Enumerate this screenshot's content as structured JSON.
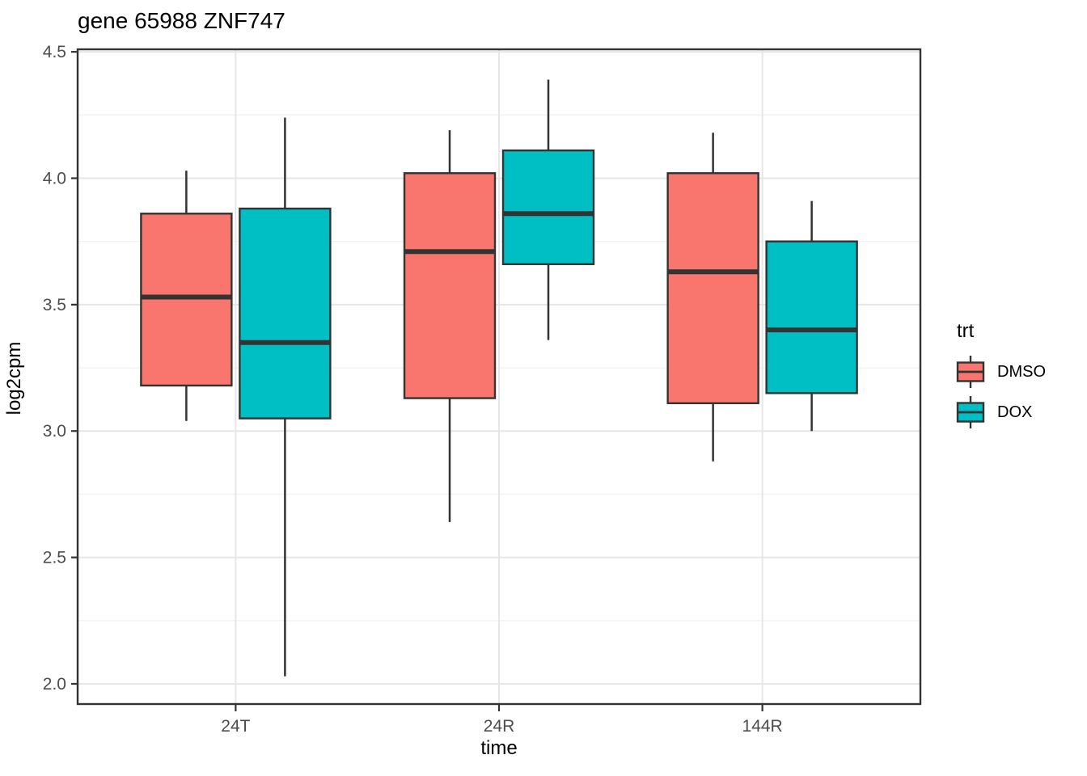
{
  "title": "gene 65988 ZNF747",
  "legend": {
    "title": "trt",
    "entries": [
      {
        "label": "DMSO",
        "color": "#F8766D"
      },
      {
        "label": "DOX",
        "color": "#00BFC4"
      }
    ]
  },
  "colors": {
    "box_stroke": "#333333",
    "median": "#333333",
    "panel_border": "#333333",
    "grid_major": "#E6E6E6",
    "grid_minor": "#F2F2F2",
    "tick_text": "#4D4D4D",
    "tick_mark": "#333333",
    "background": "#FFFFFF"
  },
  "chart_data": {
    "type": "boxplot",
    "title": "gene 65988 ZNF747",
    "xlabel": "time",
    "ylabel": "log2cpm",
    "categories": [
      "24T",
      "24R",
      "144R"
    ],
    "y_ticks": [
      2.0,
      2.5,
      3.0,
      3.5,
      4.0,
      4.5
    ],
    "y_tick_labels": [
      "2.0",
      "2.5",
      "3.0",
      "3.5",
      "4.0",
      "4.5"
    ],
    "y_minor_ticks": [
      2.25,
      2.75,
      3.25,
      3.75,
      4.25
    ],
    "ylim": [
      1.92,
      4.51
    ],
    "grid": true,
    "legend_title": "trt",
    "legend_position": "right",
    "series": [
      {
        "name": "DMSO",
        "color": "#F8766D",
        "boxes": [
          {
            "category": "24T",
            "whisker_low": 3.04,
            "q1": 3.18,
            "median": 3.53,
            "q3": 3.86,
            "whisker_high": 4.03
          },
          {
            "category": "24R",
            "whisker_low": 2.64,
            "q1": 3.13,
            "median": 3.71,
            "q3": 4.02,
            "whisker_high": 4.19
          },
          {
            "category": "144R",
            "whisker_low": 2.88,
            "q1": 3.11,
            "median": 3.63,
            "q3": 4.02,
            "whisker_high": 4.18
          }
        ]
      },
      {
        "name": "DOX",
        "color": "#00BFC4",
        "boxes": [
          {
            "category": "24T",
            "whisker_low": 2.03,
            "q1": 3.05,
            "median": 3.35,
            "q3": 3.88,
            "whisker_high": 4.24
          },
          {
            "category": "24R",
            "whisker_low": 3.36,
            "q1": 3.66,
            "median": 3.86,
            "q3": 4.11,
            "whisker_high": 4.39
          },
          {
            "category": "144R",
            "whisker_low": 3.0,
            "q1": 3.15,
            "median": 3.4,
            "q3": 3.75,
            "whisker_high": 3.91
          }
        ]
      }
    ]
  }
}
